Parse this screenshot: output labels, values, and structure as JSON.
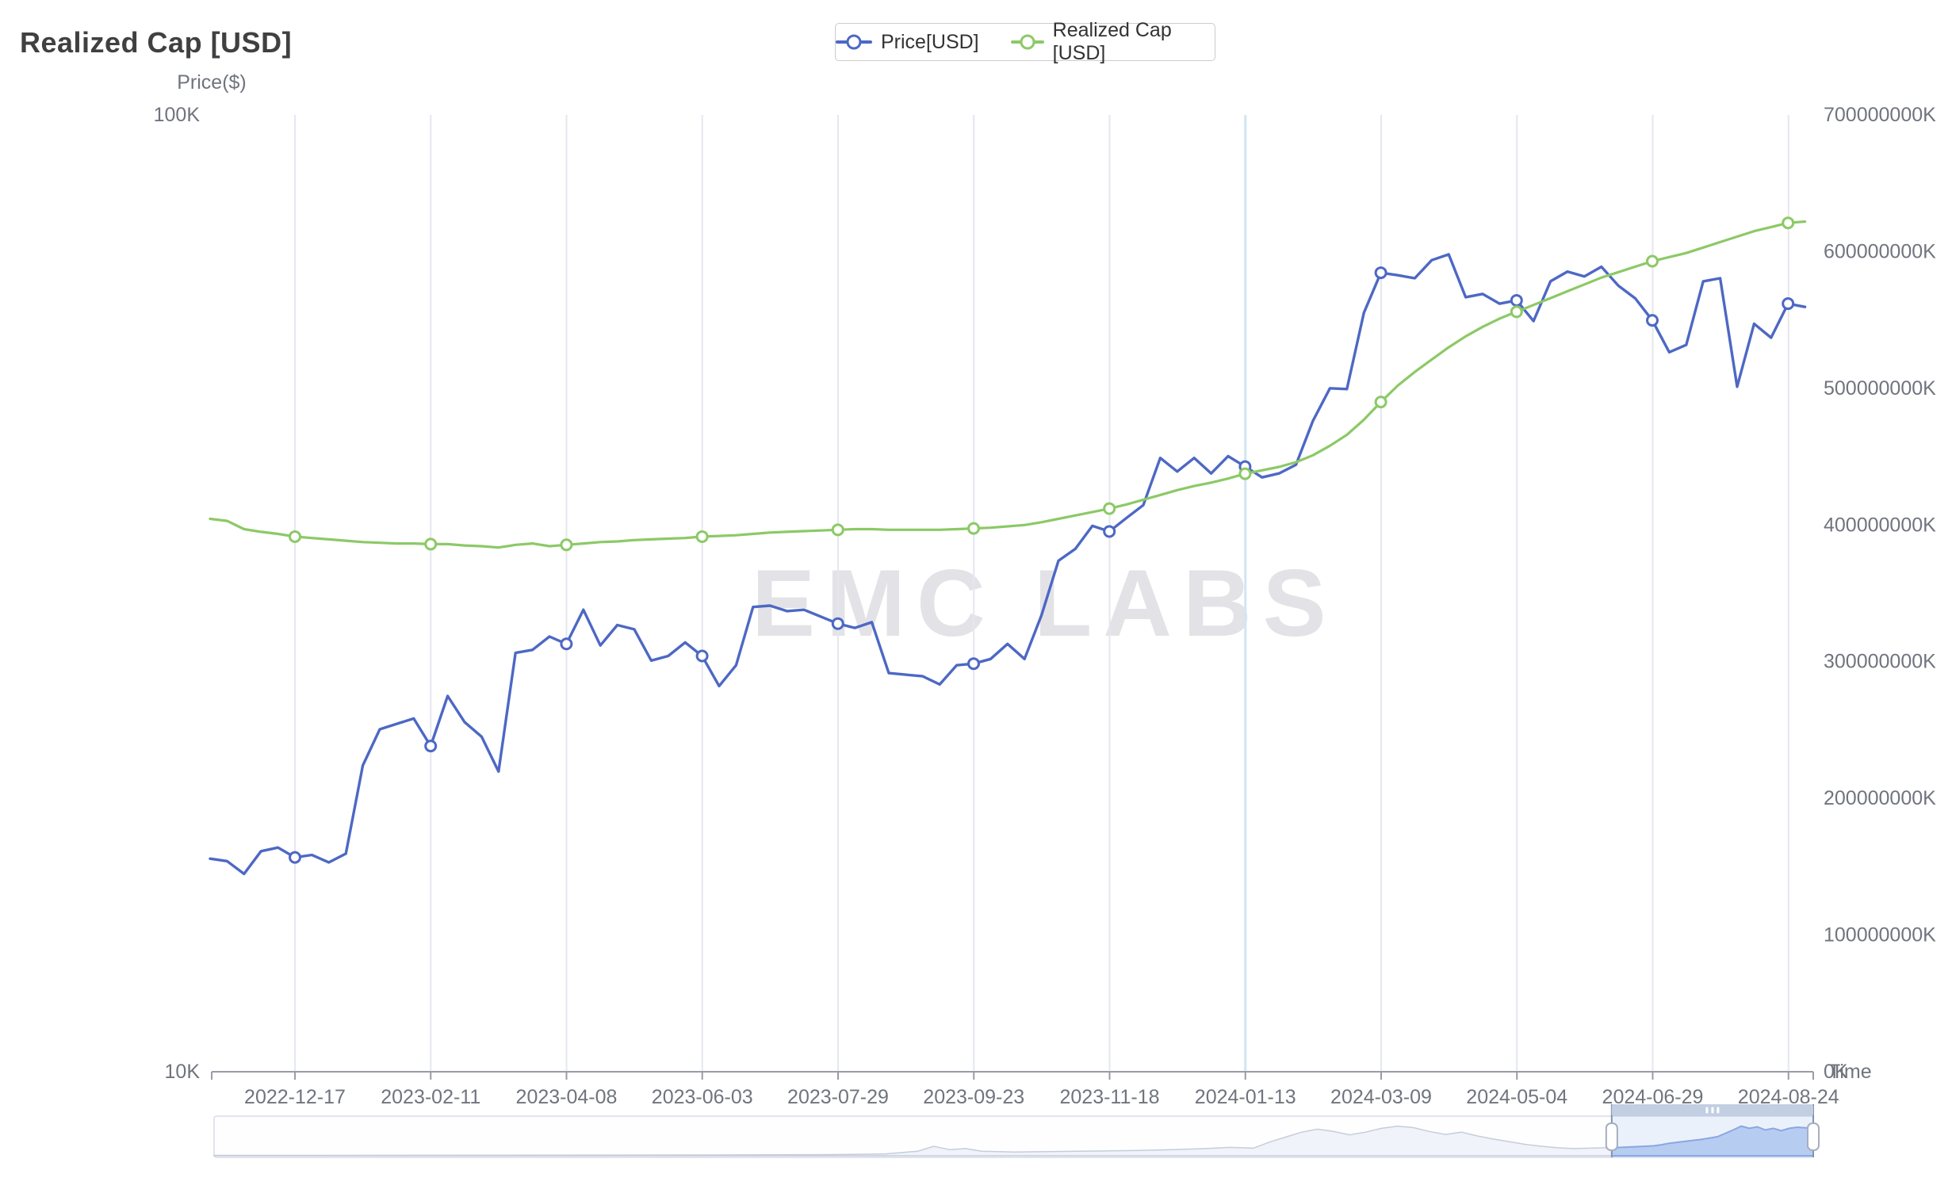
{
  "header": {
    "title": "Realized Cap [USD]"
  },
  "watermark": {
    "text": "EMC LABS"
  },
  "legend": [
    {
      "label": "Price[USD]",
      "color": "#4d68c4"
    },
    {
      "label": "Realized Cap [USD]",
      "color": "#8cc966"
    }
  ],
  "chart_data": {
    "type": "line",
    "title": "Realized Cap [USD]",
    "x_axis": {
      "name": "Time",
      "tick_labels": [
        "2022-12-17",
        "2023-02-11",
        "2023-04-08",
        "2023-06-03",
        "2023-07-29",
        "2023-09-23",
        "2023-11-18",
        "2024-01-13",
        "2024-03-09",
        "2024-05-04",
        "2024-06-29",
        "2024-08-24"
      ],
      "start_date": "2022-11-12",
      "interval": "weekly",
      "highlighted_gridline": "2024-01-13"
    },
    "left_axis": {
      "name": "Price($)",
      "scale": "log",
      "tick_labels": [
        "100K",
        "10K"
      ],
      "range_min": "10K",
      "range_max": "100K"
    },
    "right_axis": {
      "tick_labels": [
        "0K",
        "100000000K",
        "200000000K",
        "300000000K",
        "400000000K",
        "500000000K",
        "600000000K",
        "700000000K"
      ],
      "range_min": 0,
      "range_max": 700000000,
      "unit": "K"
    },
    "series": [
      {
        "name": "Price[USD]",
        "color": "#4d68c4",
        "yaxis": "left",
        "unit": "thousand USD",
        "values": [
          16.7,
          16.6,
          16.1,
          17.0,
          17.15,
          16.75,
          16.85,
          16.55,
          16.9,
          20.9,
          22.8,
          23.1,
          23.4,
          21.9,
          24.7,
          23.2,
          22.4,
          20.6,
          27.4,
          27.6,
          28.5,
          28.0,
          30.4,
          27.9,
          29.3,
          29.0,
          26.9,
          27.2,
          28.1,
          27.2,
          25.3,
          26.6,
          30.6,
          30.7,
          30.3,
          30.4,
          29.9,
          29.4,
          29.1,
          29.5,
          26.1,
          26.0,
          25.9,
          25.4,
          26.6,
          26.7,
          27.0,
          28.0,
          27.0,
          30.0,
          34.2,
          35.2,
          37.2,
          36.7,
          37.9,
          39.1,
          43.8,
          42.4,
          43.8,
          42.2,
          44.0,
          42.9,
          41.8,
          42.2,
          43.1,
          47.9,
          51.8,
          51.7,
          62.1,
          68.4,
          68.0,
          67.5,
          70.5,
          71.5,
          64.5,
          65.0,
          63.5,
          64.0,
          60.9,
          67.0,
          68.6,
          67.8,
          69.4,
          66.3,
          64.3,
          61.0,
          56.5,
          57.5,
          67.0,
          67.5,
          52.0,
          60.5,
          58.5,
          63.5,
          63.0
        ]
      },
      {
        "name": "Realized Cap [USD]",
        "color": "#8cc966",
        "yaxis": "right",
        "unit": "billion USD",
        "values": [
          404.5,
          403.0,
          397.0,
          395.0,
          393.5,
          391.5,
          390.5,
          389.5,
          388.5,
          387.5,
          387.0,
          386.5,
          386.5,
          386.0,
          386.0,
          385.0,
          384.5,
          383.5,
          385.5,
          386.5,
          384.5,
          385.5,
          386.5,
          387.5,
          388.0,
          389.0,
          389.5,
          390.0,
          390.5,
          391.5,
          392.0,
          392.5,
          393.5,
          394.5,
          395.0,
          395.5,
          396.0,
          396.5,
          397.0,
          397.0,
          396.5,
          396.5,
          396.5,
          396.5,
          397.0,
          397.5,
          398.0,
          399.0,
          400.0,
          402.0,
          404.5,
          407.0,
          409.5,
          412.0,
          415.0,
          418.5,
          422.0,
          425.5,
          428.5,
          431.0,
          434.0,
          437.5,
          440.0,
          442.5,
          446.0,
          451.0,
          458.0,
          466.0,
          477.0,
          490.0,
          502.0,
          512.0,
          521.0,
          530.0,
          538.0,
          545.0,
          551.0,
          556.0,
          561.0,
          566.0,
          571.0,
          576.0,
          581.0,
          585.0,
          589.0,
          593.0,
          596.0,
          599.0,
          603.0,
          607.0,
          611.0,
          615.0,
          618.0,
          621.0,
          622.0
        ]
      }
    ],
    "marker_tick_indices": [
      5,
      13,
      21,
      29,
      37,
      45,
      53,
      61,
      69,
      77,
      85,
      93
    ],
    "navigator": {
      "window_start": 0.874,
      "window_end": 1.0,
      "profile": [
        [
          0,
          0.01
        ],
        [
          0.06,
          0.01
        ],
        [
          0.12,
          0.012
        ],
        [
          0.18,
          0.015
        ],
        [
          0.24,
          0.018
        ],
        [
          0.3,
          0.02
        ],
        [
          0.35,
          0.025
        ],
        [
          0.38,
          0.03
        ],
        [
          0.4,
          0.035
        ],
        [
          0.42,
          0.05
        ],
        [
          0.44,
          0.12
        ],
        [
          0.45,
          0.25
        ],
        [
          0.46,
          0.16
        ],
        [
          0.47,
          0.19
        ],
        [
          0.48,
          0.12
        ],
        [
          0.5,
          0.1
        ],
        [
          0.52,
          0.11
        ],
        [
          0.54,
          0.12
        ],
        [
          0.56,
          0.13
        ],
        [
          0.58,
          0.14
        ],
        [
          0.6,
          0.16
        ],
        [
          0.62,
          0.19
        ],
        [
          0.635,
          0.22
        ],
        [
          0.65,
          0.2
        ],
        [
          0.66,
          0.36
        ],
        [
          0.67,
          0.49
        ],
        [
          0.68,
          0.62
        ],
        [
          0.69,
          0.7
        ],
        [
          0.7,
          0.64
        ],
        [
          0.71,
          0.55
        ],
        [
          0.72,
          0.62
        ],
        [
          0.73,
          0.72
        ],
        [
          0.74,
          0.78
        ],
        [
          0.75,
          0.74
        ],
        [
          0.76,
          0.64
        ],
        [
          0.77,
          0.56
        ],
        [
          0.78,
          0.62
        ],
        [
          0.79,
          0.52
        ],
        [
          0.8,
          0.44
        ],
        [
          0.81,
          0.37
        ],
        [
          0.82,
          0.3
        ],
        [
          0.83,
          0.25
        ],
        [
          0.84,
          0.21
        ],
        [
          0.85,
          0.19
        ],
        [
          0.86,
          0.2
        ],
        [
          0.87,
          0.21
        ],
        [
          0.88,
          0.22
        ],
        [
          0.89,
          0.24
        ],
        [
          0.9,
          0.26
        ],
        [
          0.905,
          0.29
        ],
        [
          0.91,
          0.33
        ],
        [
          0.92,
          0.38
        ],
        [
          0.93,
          0.43
        ],
        [
          0.94,
          0.5
        ],
        [
          0.95,
          0.68
        ],
        [
          0.955,
          0.78
        ],
        [
          0.96,
          0.72
        ],
        [
          0.965,
          0.76
        ],
        [
          0.97,
          0.68
        ],
        [
          0.975,
          0.72
        ],
        [
          0.98,
          0.66
        ],
        [
          0.985,
          0.72
        ],
        [
          0.99,
          0.75
        ],
        [
          1,
          0.72
        ]
      ]
    },
    "colors": {
      "gridline": "#e5e7ef",
      "highlighted_gridline": "#cfe6f4",
      "axis_line": "#979ca6",
      "axis_label": "#70747e",
      "watermark": "#e3e3e7",
      "nav_border": "#d7dce8",
      "nav_shadow_line": "#c6cdda",
      "nav_shadow_fill": "#f0f3f9",
      "nav_selected_fill": "#b9cdf2",
      "nav_selected_line": "#7d9bdc",
      "nav_window_tint": "rgba(180,202,240,0.25)",
      "nav_edge": "#8193b2",
      "nav_move_handle": "#c2cee2",
      "nav_handle_border": "#a6aebf"
    }
  }
}
